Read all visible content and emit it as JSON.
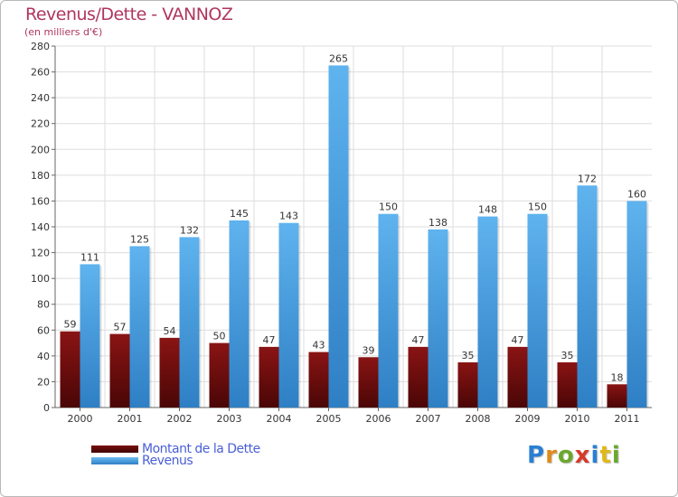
{
  "title": "Revenus/Dette - VANNOZ",
  "subtitle": "(en milliers d'€)",
  "logo_text": "Proxiti",
  "colors": {
    "title": "#b0365e",
    "dette": "#7a0f0f",
    "revenus": "#4da6e8",
    "legend_text": "#4a5fd6"
  },
  "chart_data": {
    "type": "bar",
    "title": "Revenus/Dette - VANNOZ",
    "ylabel": "(en milliers d'€)",
    "xlabel": "",
    "ylim": [
      0,
      280
    ],
    "yticks": [
      0,
      20,
      40,
      60,
      80,
      100,
      120,
      140,
      160,
      180,
      200,
      220,
      240,
      260,
      280
    ],
    "grid": true,
    "legend_position": "bottom-left",
    "categories": [
      "2000",
      "2001",
      "2002",
      "2003",
      "2004",
      "2005",
      "2006",
      "2007",
      "2008",
      "2009",
      "2010",
      "2011"
    ],
    "series": [
      {
        "name": "Montant de la Dette",
        "values": [
          59,
          57,
          54,
          50,
          47,
          43,
          39,
          47,
          35,
          47,
          35,
          18
        ]
      },
      {
        "name": "Revenus",
        "values": [
          111,
          125,
          132,
          145,
          143,
          265,
          150,
          138,
          148,
          150,
          172,
          160
        ]
      }
    ]
  }
}
